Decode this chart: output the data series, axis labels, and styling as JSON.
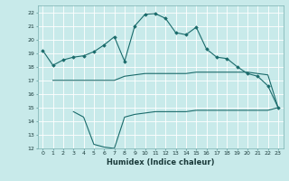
{
  "xlabel": "Humidex (Indice chaleur)",
  "bg_color": "#c8eaea",
  "grid_color": "#ffffff",
  "line_color": "#1a6b6b",
  "xlim": [
    -0.5,
    23.5
  ],
  "ylim": [
    12,
    22.5
  ],
  "yticks": [
    12,
    13,
    14,
    15,
    16,
    17,
    18,
    19,
    20,
    21,
    22
  ],
  "xticks": [
    0,
    1,
    2,
    3,
    4,
    5,
    6,
    7,
    8,
    9,
    10,
    11,
    12,
    13,
    14,
    15,
    16,
    17,
    18,
    19,
    20,
    21,
    22,
    23
  ],
  "s1_x": [
    0,
    1,
    2,
    3,
    4,
    5,
    6,
    7,
    8,
    9,
    10,
    11,
    12,
    13,
    14,
    15,
    16,
    17,
    18,
    19,
    20,
    21,
    22,
    23
  ],
  "s1_y": [
    19.2,
    18.1,
    18.5,
    18.7,
    18.8,
    19.1,
    19.6,
    20.2,
    18.4,
    21.0,
    21.85,
    21.9,
    21.55,
    20.5,
    20.35,
    20.9,
    19.3,
    18.7,
    18.6,
    18.0,
    17.5,
    17.3,
    16.6,
    15.0
  ],
  "s2_x": [
    1,
    3,
    7,
    8,
    9,
    10,
    11,
    12,
    13,
    14,
    15,
    16,
    17,
    18,
    19,
    20,
    21,
    22,
    23
  ],
  "s2_y": [
    17.0,
    17.0,
    17.0,
    17.3,
    17.4,
    17.5,
    17.5,
    17.5,
    17.5,
    17.5,
    17.6,
    17.6,
    17.6,
    17.6,
    17.6,
    17.6,
    17.5,
    17.4,
    15.0
  ],
  "s3_x": [
    3,
    4,
    5,
    6,
    7,
    8,
    9,
    10,
    11,
    12,
    13,
    14,
    15,
    16,
    17,
    18,
    19,
    20,
    21,
    22,
    23
  ],
  "s3_y": [
    14.7,
    14.3,
    12.3,
    12.1,
    12.0,
    14.3,
    14.5,
    14.6,
    14.7,
    14.7,
    14.7,
    14.7,
    14.8,
    14.8,
    14.8,
    14.8,
    14.8,
    14.8,
    14.8,
    14.8,
    15.0
  ]
}
